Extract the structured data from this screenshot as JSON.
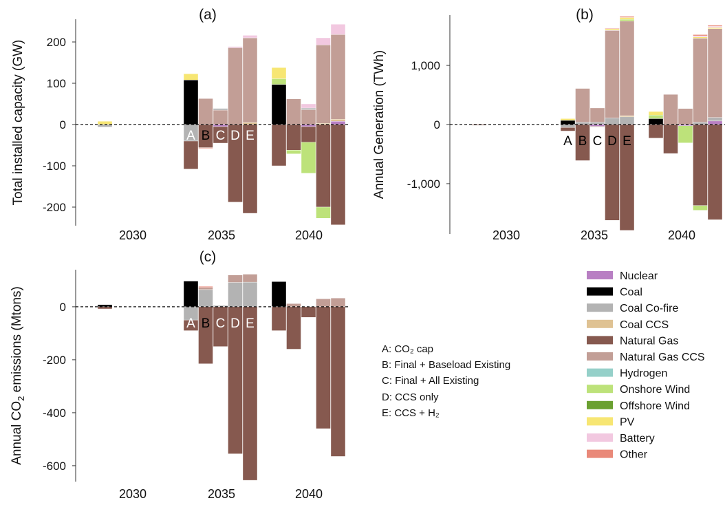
{
  "scenario_notes": [
    "A: CO₂ cap",
    "B: Final + Baseload Existing",
    "C: Final + All Existing",
    "D: CCS only",
    "E: CCS + H₂"
  ],
  "legend": [
    {
      "name": "Nuclear",
      "color": "#b87fc3"
    },
    {
      "name": "Coal",
      "color": "#000000"
    },
    {
      "name": "Coal Co-fire",
      "color": "#b3b3b3"
    },
    {
      "name": "Coal CCS",
      "color": "#dfc293"
    },
    {
      "name": "Natural Gas",
      "color": "#86594f"
    },
    {
      "name": "Natural Gas CCS",
      "color": "#c29e96"
    },
    {
      "name": "Hydrogen",
      "color": "#95d0c9"
    },
    {
      "name": "Onshore Wind",
      "color": "#bde27a"
    },
    {
      "name": "Offshore Wind",
      "color": "#6aa031"
    },
    {
      "name": "PV",
      "color": "#f7e673"
    },
    {
      "name": "Battery",
      "color": "#f2c8e0"
    },
    {
      "name": "Other",
      "color": "#e98979"
    }
  ],
  "chart_data": [
    {
      "type": "bar",
      "panel": "(a)",
      "stacked": true,
      "ylabel": "Total installed capacity (GW)",
      "ylim": [
        -245,
        255
      ],
      "yticks": [
        {
          "v": 200,
          "label": "200"
        },
        {
          "v": 100,
          "label": "100"
        },
        {
          "v": 0,
          "label": "0"
        },
        {
          "v": -100,
          "label": "-100"
        },
        {
          "v": -200,
          "label": "-200"
        }
      ],
      "year_groups": [
        "2030",
        "2035",
        "2040"
      ],
      "scenario_letters": [
        "A",
        "B",
        "C",
        "D",
        "E"
      ],
      "bars": [
        {
          "year": "2030",
          "scenario": "A",
          "segments": [
            {
              "tech": "PV",
              "value": 8
            },
            {
              "tech": "Coal Co-fire",
              "value": -6
            }
          ]
        },
        {
          "year": "2035",
          "scenario": "A",
          "segments": [
            {
              "tech": "Coal",
              "value": 108
            },
            {
              "tech": "PV",
              "value": 15
            },
            {
              "tech": "Coal Co-fire",
              "value": -40
            },
            {
              "tech": "Natural Gas",
              "value": -68
            }
          ]
        },
        {
          "year": "2035",
          "scenario": "B",
          "segments": [
            {
              "tech": "Natural Gas CCS",
              "value": 63
            },
            {
              "tech": "Natural Gas",
              "value": -56
            },
            {
              "tech": "Other",
              "value": -2
            }
          ]
        },
        {
          "year": "2035",
          "scenario": "C",
          "segments": [
            {
              "tech": "Natural Gas CCS",
              "value": 35
            },
            {
              "tech": "Coal Co-fire",
              "value": 4
            },
            {
              "tech": "Nuclear",
              "value": -5
            },
            {
              "tech": "Natural Gas",
              "value": -40
            }
          ]
        },
        {
          "year": "2035",
          "scenario": "D",
          "segments": [
            {
              "tech": "Natural Gas CCS",
              "value": 186
            },
            {
              "tech": "Battery",
              "value": 3
            },
            {
              "tech": "Natural Gas",
              "value": -188
            }
          ]
        },
        {
          "year": "2035",
          "scenario": "E",
          "segments": [
            {
              "tech": "Coal CCS",
              "value": 5
            },
            {
              "tech": "Natural Gas CCS",
              "value": 205
            },
            {
              "tech": "Battery",
              "value": 6
            },
            {
              "tech": "Natural Gas",
              "value": -215
            }
          ]
        },
        {
          "year": "2040",
          "scenario": "A",
          "segments": [
            {
              "tech": "Coal",
              "value": 97
            },
            {
              "tech": "Onshore Wind",
              "value": 14
            },
            {
              "tech": "PV",
              "value": 27
            },
            {
              "tech": "Natural Gas",
              "value": -100
            }
          ]
        },
        {
          "year": "2040",
          "scenario": "B",
          "segments": [
            {
              "tech": "Natural Gas CCS",
              "value": 62
            },
            {
              "tech": "Natural Gas",
              "value": -62
            },
            {
              "tech": "Onshore Wind",
              "value": -9
            }
          ]
        },
        {
          "year": "2040",
          "scenario": "C",
          "segments": [
            {
              "tech": "Natural Gas CCS",
              "value": 36
            },
            {
              "tech": "Coal Co-fire",
              "value": 4
            },
            {
              "tech": "Battery",
              "value": 10
            },
            {
              "tech": "Nuclear",
              "value": -5
            },
            {
              "tech": "Natural Gas",
              "value": -38
            },
            {
              "tech": "Onshore Wind",
              "value": -75
            }
          ]
        },
        {
          "year": "2040",
          "scenario": "D",
          "segments": [
            {
              "tech": "Coal CCS",
              "value": 3
            },
            {
              "tech": "Natural Gas CCS",
              "value": 190
            },
            {
              "tech": "Battery",
              "value": 17
            },
            {
              "tech": "Natural Gas",
              "value": -200
            },
            {
              "tech": "Onshore Wind",
              "value": -27
            }
          ]
        },
        {
          "year": "2040",
          "scenario": "E",
          "segments": [
            {
              "tech": "Nuclear",
              "value": 8
            },
            {
              "tech": "Coal CCS",
              "value": 5
            },
            {
              "tech": "Natural Gas CCS",
              "value": 205
            },
            {
              "tech": "Battery",
              "value": 25
            },
            {
              "tech": "Natural Gas",
              "value": -243
            }
          ]
        }
      ]
    },
    {
      "type": "bar",
      "panel": "(b)",
      "stacked": true,
      "ylabel": "Annual Generation (TWh)",
      "ylim": [
        -1850,
        1850
      ],
      "yticks": [
        {
          "v": 1000,
          "label": "1,000"
        },
        {
          "v": 0,
          "label": "0"
        },
        {
          "v": -1000,
          "label": "-1,000"
        }
      ],
      "year_groups": [
        "2030",
        "2035",
        "2040"
      ],
      "scenario_letters": [
        "A",
        "B",
        "C",
        "D",
        "E"
      ],
      "bars": [
        {
          "year": "2030",
          "scenario": "A",
          "segments": [
            {
              "tech": "Natural Gas",
              "value": -15
            }
          ]
        },
        {
          "year": "2035",
          "scenario": "A",
          "segments": [
            {
              "tech": "Coal",
              "value": 70
            },
            {
              "tech": "PV",
              "value": 30
            },
            {
              "tech": "Coal Co-fire",
              "value": -50
            },
            {
              "tech": "Natural Gas",
              "value": -60
            }
          ]
        },
        {
          "year": "2035",
          "scenario": "B",
          "segments": [
            {
              "tech": "Coal Co-fire",
              "value": 40
            },
            {
              "tech": "Natural Gas CCS",
              "value": 570
            },
            {
              "tech": "Natural Gas",
              "value": -610
            }
          ]
        },
        {
          "year": "2035",
          "scenario": "C",
          "segments": [
            {
              "tech": "Coal Co-fire",
              "value": 40
            },
            {
              "tech": "Natural Gas CCS",
              "value": 240
            },
            {
              "tech": "Nuclear",
              "value": -30
            },
            {
              "tech": "Natural Gas",
              "value": -10
            }
          ]
        },
        {
          "year": "2035",
          "scenario": "D",
          "segments": [
            {
              "tech": "Coal Co-fire",
              "value": 110
            },
            {
              "tech": "Natural Gas CCS",
              "value": 1480
            },
            {
              "tech": "Battery",
              "value": 10
            },
            {
              "tech": "PV",
              "value": 20
            },
            {
              "tech": "Other",
              "value": 10
            },
            {
              "tech": "Natural Gas",
              "value": -1620
            }
          ]
        },
        {
          "year": "2035",
          "scenario": "E",
          "segments": [
            {
              "tech": "Coal Co-fire",
              "value": 130
            },
            {
              "tech": "Coal CCS",
              "value": 20
            },
            {
              "tech": "Natural Gas CCS",
              "value": 1600
            },
            {
              "tech": "Onshore Wind",
              "value": 30
            },
            {
              "tech": "PV",
              "value": 30
            },
            {
              "tech": "Other",
              "value": 20
            },
            {
              "tech": "Natural Gas",
              "value": -1790
            }
          ]
        },
        {
          "year": "2040",
          "scenario": "A",
          "segments": [
            {
              "tech": "Coal",
              "value": 100
            },
            {
              "tech": "Onshore Wind",
              "value": 60
            },
            {
              "tech": "PV",
              "value": 60
            },
            {
              "tech": "Natural Gas",
              "value": -230
            }
          ]
        },
        {
          "year": "2040",
          "scenario": "B",
          "segments": [
            {
              "tech": "Natural Gas CCS",
              "value": 510
            },
            {
              "tech": "Natural Gas",
              "value": -490
            }
          ]
        },
        {
          "year": "2040",
          "scenario": "C",
          "segments": [
            {
              "tech": "Natural Gas CCS",
              "value": 270
            },
            {
              "tech": "Nuclear",
              "value": -20
            },
            {
              "tech": "Onshore Wind",
              "value": -290
            }
          ]
        },
        {
          "year": "2040",
          "scenario": "D",
          "segments": [
            {
              "tech": "Coal Co-fire",
              "value": 40
            },
            {
              "tech": "Natural Gas CCS",
              "value": 1420
            },
            {
              "tech": "PV",
              "value": 20
            },
            {
              "tech": "Battery",
              "value": 20
            },
            {
              "tech": "Other",
              "value": 20
            },
            {
              "tech": "Natural Gas",
              "value": -1370
            },
            {
              "tech": "Onshore Wind",
              "value": -80
            }
          ]
        },
        {
          "year": "2040",
          "scenario": "E",
          "segments": [
            {
              "tech": "Nuclear",
              "value": 60
            },
            {
              "tech": "Coal Co-fire",
              "value": 60
            },
            {
              "tech": "Natural Gas CCS",
              "value": 1500
            },
            {
              "tech": "PV",
              "value": 20
            },
            {
              "tech": "Battery",
              "value": 20
            },
            {
              "tech": "Other",
              "value": 20
            },
            {
              "tech": "Natural Gas",
              "value": -1610
            }
          ]
        }
      ]
    },
    {
      "type": "bar",
      "panel": "(c)",
      "stacked": true,
      "ylabel": "Annual CO₂ emissions (Mtons)",
      "ylim": [
        -660,
        140
      ],
      "yticks": [
        {
          "v": 0,
          "label": "0"
        },
        {
          "v": -200,
          "label": "-200"
        },
        {
          "v": -400,
          "label": "-400"
        },
        {
          "v": -600,
          "label": "-600"
        }
      ],
      "year_groups": [
        "2030",
        "2035",
        "2040"
      ],
      "scenario_letters": [
        "A",
        "B",
        "C",
        "D",
        "E"
      ],
      "bars": [
        {
          "year": "2030",
          "scenario": "A",
          "segments": [
            {
              "tech": "Coal",
              "value": 8
            },
            {
              "tech": "Natural Gas",
              "value": -8
            }
          ]
        },
        {
          "year": "2035",
          "scenario": "A",
          "segments": [
            {
              "tech": "Coal",
              "value": 97
            },
            {
              "tech": "Coal Co-fire",
              "value": -50
            },
            {
              "tech": "Natural Gas",
              "value": -40
            }
          ]
        },
        {
          "year": "2035",
          "scenario": "B",
          "segments": [
            {
              "tech": "Coal Co-fire",
              "value": 65
            },
            {
              "tech": "Natural Gas CCS",
              "value": 8
            },
            {
              "tech": "Other",
              "value": 4
            },
            {
              "tech": "Natural Gas",
              "value": -215
            }
          ]
        },
        {
          "year": "2035",
          "scenario": "C",
          "segments": [
            {
              "tech": "Coal Co-fire",
              "value": 5
            },
            {
              "tech": "Natural Gas",
              "value": -150
            }
          ]
        },
        {
          "year": "2035",
          "scenario": "D",
          "segments": [
            {
              "tech": "Coal Co-fire",
              "value": 92
            },
            {
              "tech": "Natural Gas CCS",
              "value": 28
            },
            {
              "tech": "Natural Gas",
              "value": -555
            }
          ]
        },
        {
          "year": "2035",
          "scenario": "E",
          "segments": [
            {
              "tech": "Coal Co-fire",
              "value": 93
            },
            {
              "tech": "Natural Gas CCS",
              "value": 30
            },
            {
              "tech": "Natural Gas",
              "value": -655
            }
          ]
        },
        {
          "year": "2040",
          "scenario": "A",
          "segments": [
            {
              "tech": "Coal",
              "value": 95
            },
            {
              "tech": "Natural Gas",
              "value": -90
            }
          ]
        },
        {
          "year": "2040",
          "scenario": "B",
          "segments": [
            {
              "tech": "Natural Gas CCS",
              "value": 12
            },
            {
              "tech": "Natural Gas",
              "value": -160
            }
          ]
        },
        {
          "year": "2040",
          "scenario": "C",
          "segments": [
            {
              "tech": "Natural Gas",
              "value": -40
            }
          ]
        },
        {
          "year": "2040",
          "scenario": "D",
          "segments": [
            {
              "tech": "Natural Gas CCS",
              "value": 30
            },
            {
              "tech": "Natural Gas",
              "value": -460
            }
          ]
        },
        {
          "year": "2040",
          "scenario": "E",
          "segments": [
            {
              "tech": "Natural Gas CCS",
              "value": 33
            },
            {
              "tech": "Natural Gas",
              "value": -565
            }
          ]
        }
      ]
    }
  ]
}
